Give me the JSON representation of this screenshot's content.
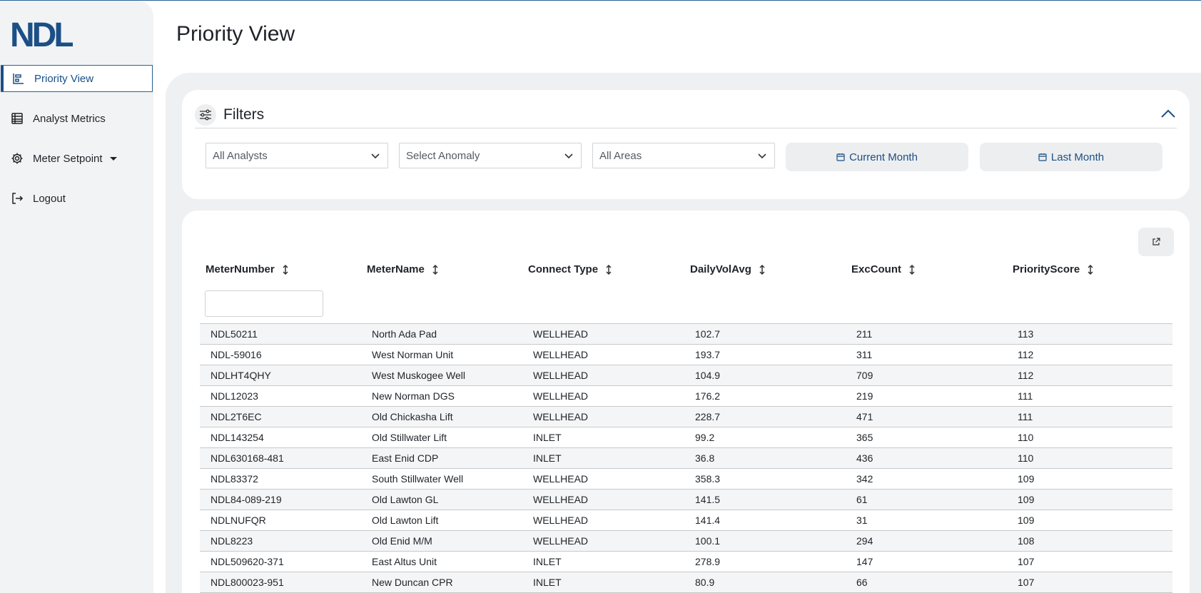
{
  "sidebar": {
    "logo_text": "NDL",
    "items": [
      {
        "label": "Priority View",
        "icon": "bar-chart-icon",
        "active": true
      },
      {
        "label": "Analyst Metrics",
        "icon": "table-icon",
        "active": false
      },
      {
        "label": "Meter Setpoint",
        "icon": "gear-icon",
        "active": false,
        "has_dropdown": true
      },
      {
        "label": "Logout",
        "icon": "logout-icon",
        "active": false
      }
    ]
  },
  "header": {
    "title": "Priority View"
  },
  "filters": {
    "title": "Filters",
    "analyst_select": "All Analysts",
    "anomaly_select": "Select Anomaly",
    "area_select": "All Areas",
    "current_month_label": "Current Month",
    "last_month_label": "Last Month"
  },
  "table": {
    "columns": [
      "MeterNumber",
      "MeterName",
      "Connect Type",
      "DailyVolAvg",
      "ExcCount",
      "PriorityScore"
    ],
    "meter_number_filter_value": "",
    "rows": [
      [
        "NDL50211",
        "North Ada Pad",
        "WELLHEAD",
        "102.7",
        "211",
        "113"
      ],
      [
        "NDL-59016",
        "West Norman Unit",
        "WELLHEAD",
        "193.7",
        "311",
        "112"
      ],
      [
        "NDLHT4QHY",
        "West Muskogee Well",
        "WELLHEAD",
        "104.9",
        "709",
        "112"
      ],
      [
        "NDL12023",
        "New Norman DGS",
        "WELLHEAD",
        "176.2",
        "219",
        "111"
      ],
      [
        "NDL2T6EC",
        "Old Chickasha Lift",
        "WELLHEAD",
        "228.7",
        "471",
        "111"
      ],
      [
        "NDL143254",
        "Old Stillwater Lift",
        "INLET",
        "99.2",
        "365",
        "110"
      ],
      [
        "NDL630168-481",
        "East Enid CDP",
        "INLET",
        "36.8",
        "436",
        "110"
      ],
      [
        "NDL83372",
        "South Stillwater Well",
        "WELLHEAD",
        "358.3",
        "342",
        "109"
      ],
      [
        "NDL84-089-219",
        "Old Lawton GL",
        "WELLHEAD",
        "141.5",
        "61",
        "109"
      ],
      [
        "NDLNUFQR",
        "Old Lawton Lift",
        "WELLHEAD",
        "141.4",
        "31",
        "109"
      ],
      [
        "NDL8223",
        "Old Enid M/M",
        "WELLHEAD",
        "100.1",
        "294",
        "108"
      ],
      [
        "NDL509620-371",
        "East Altus Unit",
        "INLET",
        "278.9",
        "147",
        "107"
      ],
      [
        "NDL800023-951",
        "New Duncan CPR",
        "INLET",
        "80.9",
        "66",
        "107"
      ]
    ]
  },
  "colors": {
    "accent": "#1b4f86",
    "sidebar_bg": "#f2f3f5",
    "panel_bg": "#eff0f2"
  }
}
